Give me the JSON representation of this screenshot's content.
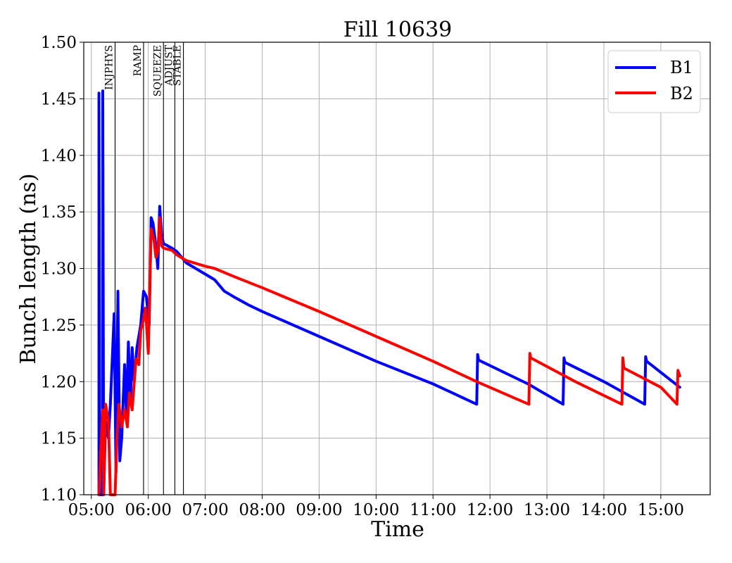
{
  "chart_data": {
    "type": "line",
    "title": "Fill 10639",
    "xlabel": "Time",
    "ylabel": "Bunch length (ns)",
    "xlim": [
      "04:52",
      "15:52"
    ],
    "ylim": [
      1.1,
      1.5
    ],
    "x_ticks": [
      "05:00",
      "06:00",
      "07:00",
      "08:00",
      "09:00",
      "10:00",
      "11:00",
      "12:00",
      "13:00",
      "14:00",
      "15:00"
    ],
    "y_ticks": [
      "1.10",
      "1.15",
      "1.20",
      "1.25",
      "1.30",
      "1.35",
      "1.40",
      "1.45",
      "1.50"
    ],
    "grid": true,
    "legend_position": "top-right",
    "phases": [
      {
        "label": "INJPHYS",
        "time": "05:25"
      },
      {
        "label": "RAMP",
        "time": "05:55"
      },
      {
        "label": "SQUEEZE",
        "time": "06:16"
      },
      {
        "label": "ADJUST",
        "time": "06:28"
      },
      {
        "label": "STABLE",
        "time": "06:37"
      }
    ],
    "colors": {
      "B1": "#0000ff",
      "B2": "#ff0000"
    },
    "series": [
      {
        "name": "B1",
        "color": "#0000ff",
        "points": [
          [
            "05:08",
            1.1
          ],
          [
            "05:08",
            1.455
          ],
          [
            "05:09",
            1.1
          ],
          [
            "05:12",
            1.1
          ],
          [
            "05:12",
            1.457
          ],
          [
            "05:13",
            1.1
          ],
          [
            "05:15",
            1.165
          ],
          [
            "05:18",
            1.15
          ],
          [
            "05:20",
            1.18
          ],
          [
            "05:24",
            1.26
          ],
          [
            "05:26",
            1.12
          ],
          [
            "05:28",
            1.28
          ],
          [
            "05:30",
            1.13
          ],
          [
            "05:32",
            1.15
          ],
          [
            "05:35",
            1.215
          ],
          [
            "05:37",
            1.17
          ],
          [
            "05:39",
            1.235
          ],
          [
            "05:41",
            1.18
          ],
          [
            "05:43",
            1.23
          ],
          [
            "05:45",
            1.2
          ],
          [
            "05:48",
            1.23
          ],
          [
            "05:52",
            1.25
          ],
          [
            "05:55",
            1.28
          ],
          [
            "05:58",
            1.275
          ],
          [
            "06:01",
            1.25
          ],
          [
            "06:03",
            1.345
          ],
          [
            "06:05",
            1.34
          ],
          [
            "06:08",
            1.32
          ],
          [
            "06:10",
            1.3
          ],
          [
            "06:12",
            1.355
          ],
          [
            "06:14",
            1.33
          ],
          [
            "06:16",
            1.322
          ],
          [
            "06:25",
            1.318
          ],
          [
            "06:30",
            1.315
          ],
          [
            "06:35",
            1.31
          ],
          [
            "06:40",
            1.305
          ],
          [
            "07:00",
            1.295
          ],
          [
            "07:10",
            1.29
          ],
          [
            "07:20",
            1.28
          ],
          [
            "07:30",
            1.275
          ],
          [
            "07:45",
            1.268
          ],
          [
            "08:00",
            1.262
          ],
          [
            "09:00",
            1.24
          ],
          [
            "10:00",
            1.218
          ],
          [
            "11:00",
            1.198
          ],
          [
            "11:46",
            1.18
          ],
          [
            "11:47",
            1.224
          ],
          [
            "11:48",
            1.219
          ],
          [
            "12:40",
            1.198
          ],
          [
            "13:17",
            1.18
          ],
          [
            "13:18",
            1.221
          ],
          [
            "13:19",
            1.217
          ],
          [
            "14:00",
            1.2
          ],
          [
            "14:43",
            1.18
          ],
          [
            "14:44",
            1.222
          ],
          [
            "14:45",
            1.218
          ],
          [
            "15:20",
            1.195
          ]
        ]
      },
      {
        "name": "B2",
        "color": "#ff0000",
        "points": [
          [
            "05:08",
            1.1
          ],
          [
            "05:10",
            1.14
          ],
          [
            "05:12",
            1.175
          ],
          [
            "05:13",
            1.1
          ],
          [
            "05:15",
            1.18
          ],
          [
            "05:18",
            1.165
          ],
          [
            "05:20",
            1.1
          ],
          [
            "05:25",
            1.1
          ],
          [
            "05:27",
            1.15
          ],
          [
            "05:29",
            1.18
          ],
          [
            "05:32",
            1.16
          ],
          [
            "05:35",
            1.175
          ],
          [
            "05:38",
            1.16
          ],
          [
            "05:40",
            1.19
          ],
          [
            "05:43",
            1.175
          ],
          [
            "05:47",
            1.22
          ],
          [
            "05:50",
            1.215
          ],
          [
            "05:52",
            1.245
          ],
          [
            "05:55",
            1.255
          ],
          [
            "05:57",
            1.265
          ],
          [
            "06:00",
            1.225
          ],
          [
            "06:03",
            1.335
          ],
          [
            "06:06",
            1.325
          ],
          [
            "06:08",
            1.31
          ],
          [
            "06:10",
            1.315
          ],
          [
            "06:12",
            1.345
          ],
          [
            "06:14",
            1.32
          ],
          [
            "06:16",
            1.318
          ],
          [
            "06:25",
            1.316
          ],
          [
            "06:30",
            1.312
          ],
          [
            "06:40",
            1.307
          ],
          [
            "07:00",
            1.302
          ],
          [
            "07:10",
            1.3
          ],
          [
            "07:30",
            1.293
          ],
          [
            "08:00",
            1.283
          ],
          [
            "09:00",
            1.262
          ],
          [
            "10:00",
            1.24
          ],
          [
            "11:00",
            1.218
          ],
          [
            "11:46",
            1.2
          ],
          [
            "12:41",
            1.18
          ],
          [
            "12:42",
            1.225
          ],
          [
            "12:43",
            1.221
          ],
          [
            "13:30",
            1.2
          ],
          [
            "14:19",
            1.18
          ],
          [
            "14:20",
            1.221
          ],
          [
            "14:21",
            1.212
          ],
          [
            "15:00",
            1.195
          ],
          [
            "15:17",
            1.18
          ],
          [
            "15:18",
            1.21
          ],
          [
            "15:20",
            1.205
          ]
        ]
      }
    ]
  }
}
